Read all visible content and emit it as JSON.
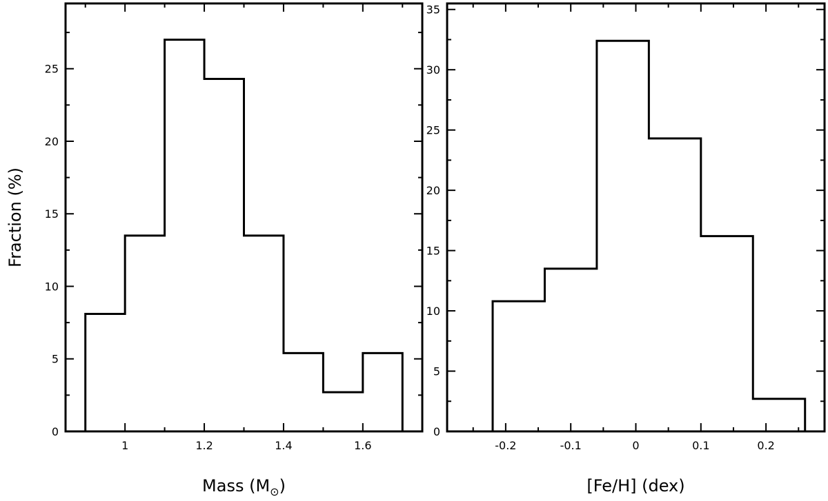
{
  "chart_data": [
    {
      "type": "bar",
      "style": "step-histogram",
      "xlabel": "Mass (M",
      "xlabel_sub": "⊙",
      "xlabel_close": ")",
      "ylabel": "Fraction (%)",
      "bin_edges": [
        0.9,
        1.0,
        1.1,
        1.2,
        1.3,
        1.4,
        1.5,
        1.6,
        1.7
      ],
      "values": [
        8.1,
        13.5,
        27.0,
        24.3,
        13.5,
        5.4,
        2.7,
        5.4
      ],
      "xlim": [
        0.85,
        1.75
      ],
      "ylim": [
        0,
        29.5
      ],
      "xticks": [
        1.0,
        1.2,
        1.4,
        1.6
      ],
      "xtick_labels": [
        "1",
        "1.2",
        "1.4",
        "1.6"
      ],
      "xminor": [
        0.9,
        1.1,
        1.3,
        1.5,
        1.7
      ],
      "yticks": [
        0,
        5,
        10,
        15,
        20,
        25
      ],
      "ytick_labels": [
        "0",
        "5",
        "10",
        "15",
        "20",
        "25"
      ],
      "grid": false
    },
    {
      "type": "bar",
      "style": "step-histogram",
      "xlabel": "[Fe/H] (dex)",
      "ylabel": "",
      "bin_edges": [
        -0.22,
        -0.14,
        -0.06,
        0.02,
        0.1,
        0.18,
        0.26
      ],
      "values": [
        10.8,
        13.5,
        32.4,
        24.3,
        16.2,
        2.7
      ],
      "xlim": [
        -0.29,
        0.29
      ],
      "ylim": [
        0,
        35.5
      ],
      "xticks": [
        -0.2,
        -0.1,
        0.0,
        0.1,
        0.2
      ],
      "xtick_labels": [
        "-0.2",
        "-0.1",
        "0",
        "0.1",
        "0.2"
      ],
      "xminor": [
        -0.25,
        -0.15,
        -0.05,
        0.05,
        0.15,
        0.25
      ],
      "yticks": [
        0,
        5,
        10,
        15,
        20,
        25,
        30,
        35
      ],
      "ytick_labels": [
        "0",
        "5",
        "10",
        "15",
        "20",
        "25",
        "30",
        "35"
      ],
      "grid": false
    }
  ]
}
